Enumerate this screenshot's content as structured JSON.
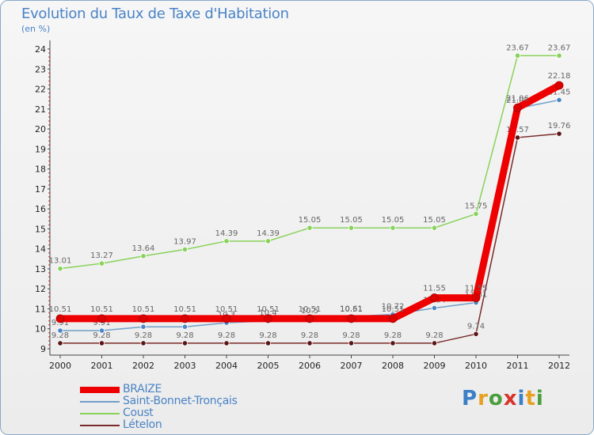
{
  "title": "Evolution du Taux de Taxe d'Habitation",
  "subtitle": "(en %)",
  "logo": {
    "text": "Proxiti",
    "colors": [
      "#3a7fc8",
      "#e8a020",
      "#4a9e3c",
      "#d8342c",
      "#3a7fc8",
      "#e8a020",
      "#4a9e3c"
    ]
  },
  "chart_data": {
    "type": "line",
    "title": "Evolution du Taux de Taxe d'Habitation",
    "ylabel": "(en %)",
    "xlabel": "",
    "x": [
      "2000",
      "2001",
      "2002",
      "2003",
      "2004",
      "2005",
      "2006",
      "2007",
      "2008",
      "2009",
      "2010",
      "2011",
      "2012"
    ],
    "ylim": [
      9,
      24
    ],
    "yticks": [
      "9",
      "10",
      "11",
      "12",
      "13",
      "14",
      "15",
      "16",
      "17",
      "18",
      "19",
      "20",
      "21",
      "22",
      "23",
      "24"
    ],
    "grid": false,
    "legend_position": "bottom-left",
    "series": [
      {
        "name": "Lételon",
        "color": "#7a2a2a",
        "marker": "#5a1515",
        "values": [
          9.28,
          9.28,
          9.28,
          9.28,
          9.28,
          9.28,
          9.28,
          9.28,
          9.28,
          9.28,
          9.74,
          19.57,
          19.76
        ],
        "labels": [
          "9.28",
          "9.28",
          "9.28",
          "9.28",
          "9.28",
          "9.28",
          "9.28",
          "9.28",
          "9.28",
          "9.28",
          "9.74",
          "19.57",
          "19.76"
        ]
      },
      {
        "name": "Coust",
        "color": "#88d25a",
        "marker": "#88d25a",
        "values": [
          13.01,
          13.27,
          13.64,
          13.97,
          14.39,
          14.39,
          15.05,
          15.05,
          15.05,
          15.05,
          15.75,
          23.67,
          23.67
        ],
        "labels": [
          "13.01",
          "13.27",
          "13.64",
          "13.97",
          "14.39",
          "14.39",
          "15.05",
          "15.05",
          "15.05",
          "15.05",
          "15.75",
          "23.67",
          "23.67"
        ]
      },
      {
        "name": "Saint-Bonnet-Tronçais",
        "color": "#6f9ec9",
        "marker": "#4a86c6",
        "values": [
          9.91,
          9.91,
          10.1,
          10.1,
          10.3,
          10.4,
          10.5,
          10.61,
          10.72,
          11.04,
          11.31,
          21.03,
          21.45
        ],
        "labels": [
          "9.91",
          "9.91",
          "10.1",
          "10.1",
          "10.3",
          "10.4",
          "10.5",
          "10.61",
          "10.72",
          "11.04",
          "11.31",
          "21.03",
          "21.45"
        ]
      },
      {
        "name": "BRAIZE",
        "color": "#ee0000",
        "marker": "#dd0000",
        "values": [
          10.51,
          10.51,
          10.51,
          10.51,
          10.51,
          10.51,
          10.51,
          10.51,
          10.51,
          11.55,
          11.55,
          21.06,
          22.18
        ],
        "labels": [
          "10.51",
          "10.51",
          "10.51",
          "10.51",
          "10.51",
          "10.51",
          "10.51",
          "10.51",
          "10.51",
          "11.55",
          "11.55",
          "21.06",
          "22.18"
        ]
      }
    ]
  }
}
